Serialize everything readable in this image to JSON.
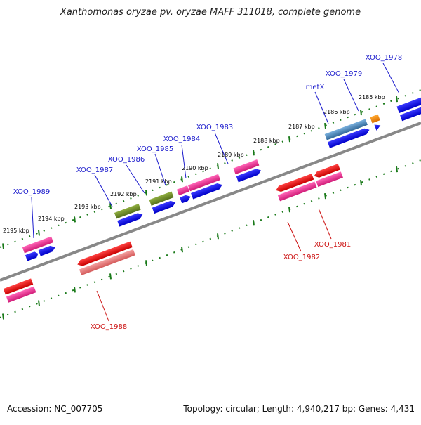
{
  "header": {
    "title": "Xanthomonas oryzae pv. oryzae MAFF 311018, complete genome"
  },
  "footer": {
    "accession": "Accession: NC_007705",
    "summary": "Topology: circular; Length: 4,940,217 bp; Genes: 4,431"
  },
  "colors": {
    "backbone": "#888888",
    "tick": "#1a7a1a",
    "forward_label": "#1a1acc",
    "reverse_label": "#cc1111",
    "cds": "#0000ee",
    "gene_pink": "#e8308a",
    "gene_olive": "#6e8a2a",
    "gene_steel": "#4a80b0",
    "gene_orange": "#ff8c00",
    "gene_red": "#ee1111",
    "gene_salmon": "#e87070"
  },
  "scale": {
    "ticks": [
      "2185 kbp",
      "2186 kbp",
      "2187 kbp",
      "2188 kbp",
      "2189 kbp",
      "2190 kbp",
      "2191 kbp",
      "2192 kbp",
      "2193 kbp",
      "2194 kbp",
      "2195 kbp"
    ]
  },
  "genes": [
    {
      "label": "XOO_1978",
      "strand": "forward"
    },
    {
      "label": "XOO_1979",
      "strand": "forward"
    },
    {
      "label": "metX",
      "strand": "forward"
    },
    {
      "label": "XOO_1983",
      "strand": "forward"
    },
    {
      "label": "XOO_1984",
      "strand": "forward"
    },
    {
      "label": "XOO_1985",
      "strand": "forward"
    },
    {
      "label": "XOO_1986",
      "strand": "forward"
    },
    {
      "label": "XOO_1987",
      "strand": "forward"
    },
    {
      "label": "XOO_1989",
      "strand": "forward"
    },
    {
      "label": "XOO_1981",
      "strand": "reverse"
    },
    {
      "label": "XOO_1982",
      "strand": "reverse"
    },
    {
      "label": "XOO_1988",
      "strand": "reverse"
    }
  ]
}
